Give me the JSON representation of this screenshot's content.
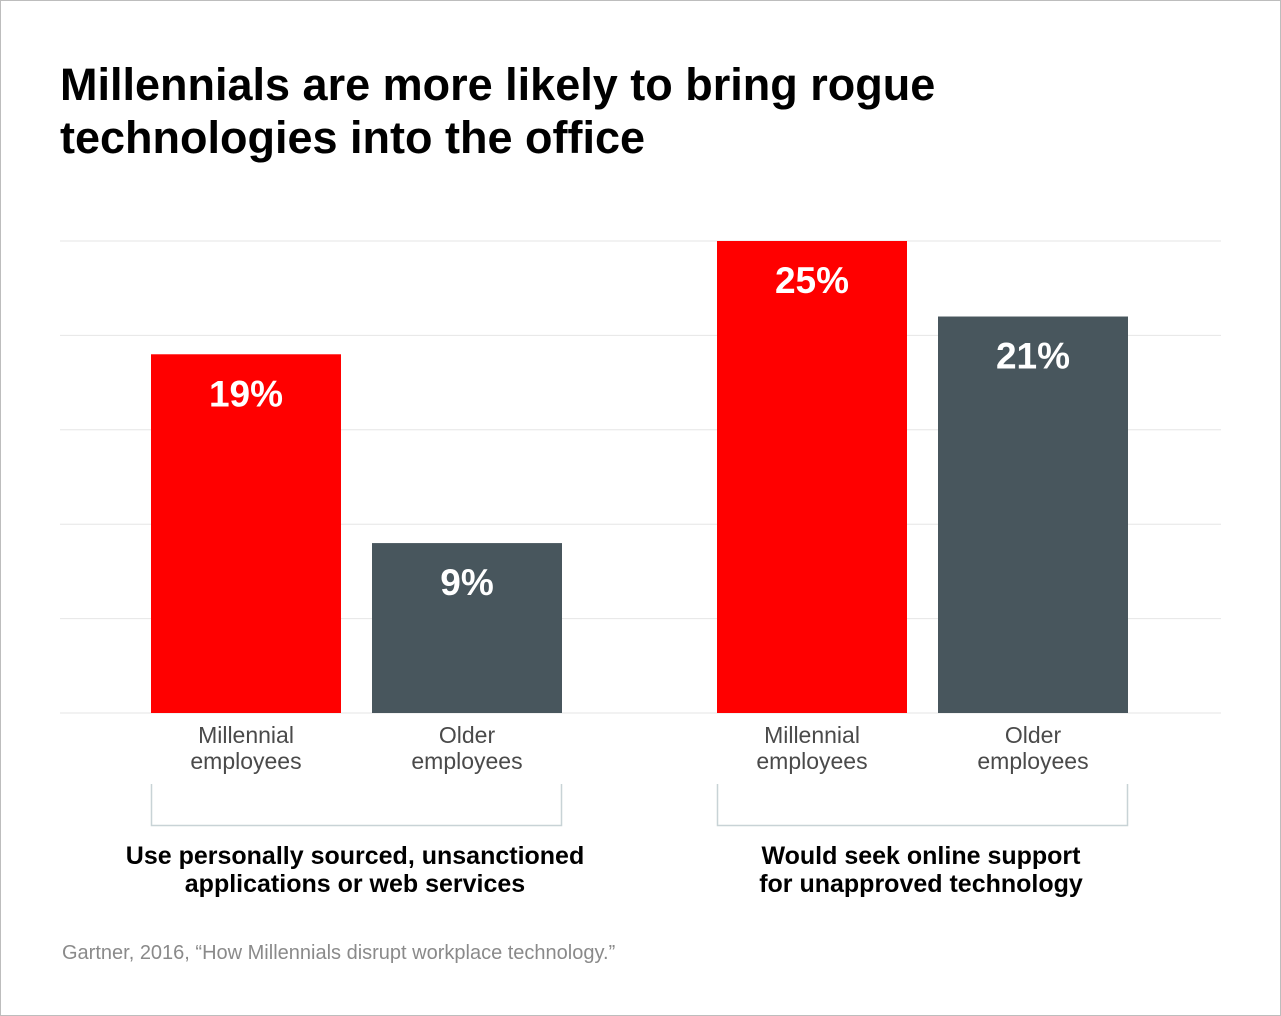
{
  "title": {
    "line1": "Millennials are more likely to bring rogue",
    "line2": "technologies into the office"
  },
  "colors": {
    "millennial": "#ff0000",
    "older": "#48565d",
    "grid": "#e6e6e6",
    "bracket": "#c8d3d6"
  },
  "chart_data": {
    "type": "bar",
    "title": "Millennials are more likely to bring rogue technologies into the office",
    "ylim": [
      0,
      25
    ],
    "grid": true,
    "gridlines": [
      0,
      5,
      10,
      15,
      20,
      25
    ],
    "groups": [
      {
        "label_line1": "Use personally sourced, unsanctioned",
        "label_line2": "applications or web services",
        "bars": [
          {
            "series": "Millennial employees",
            "label_line1": "Millennial",
            "label_line2": "employees",
            "value": 19,
            "value_label": "19%"
          },
          {
            "series": "Older employees",
            "label_line1": "Older",
            "label_line2": "employees",
            "value": 9,
            "value_label": "9%"
          }
        ]
      },
      {
        "label_line1": "Would seek online support",
        "label_line2": "for unapproved technology",
        "bars": [
          {
            "series": "Millennial employees",
            "label_line1": "Millennial",
            "label_line2": "employees",
            "value": 25,
            "value_label": "25%"
          },
          {
            "series": "Older employees",
            "label_line1": "Older",
            "label_line2": "employees",
            "value": 21,
            "value_label": "21%"
          }
        ]
      }
    ]
  },
  "source": "Gartner, 2016, “How Millennials disrupt workplace technology.”"
}
